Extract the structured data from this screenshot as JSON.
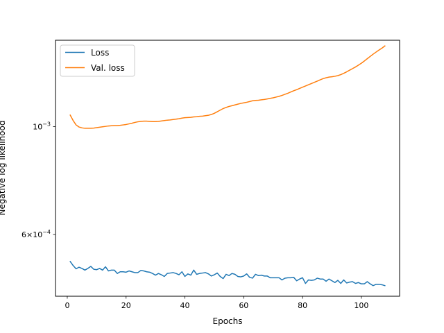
{
  "chart_data": {
    "type": "line",
    "title": "",
    "xlabel": "Epochs",
    "ylabel": "Negative log likelihood",
    "yscale": "log",
    "xlim": [
      -4,
      113
    ],
    "ylim": [
      0.000448,
      0.001505
    ],
    "xticks": [
      0,
      20,
      40,
      60,
      80,
      100
    ],
    "xtick_labels": [
      "0",
      "20",
      "40",
      "60",
      "80",
      "100"
    ],
    "yticks": [
      0.001,
      0.0006
    ],
    "ytick_labels": [
      {
        "mantissa": "",
        "base": "10",
        "exp": "−3"
      },
      {
        "mantissa": "6",
        "base": "10",
        "exp": "−4"
      }
    ],
    "legend": {
      "position": "upper-left"
    },
    "grid": false,
    "series": [
      {
        "name": "Loss",
        "color": "#1f77b4",
        "x": [
          1,
          2,
          3,
          4,
          5,
          6,
          7,
          8,
          9,
          10,
          11,
          12,
          13,
          14,
          15,
          16,
          17,
          18,
          19,
          20,
          21,
          22,
          23,
          24,
          25,
          26,
          27,
          28,
          29,
          30,
          31,
          32,
          33,
          34,
          35,
          36,
          37,
          38,
          39,
          40,
          41,
          42,
          43,
          44,
          45,
          46,
          47,
          48,
          49,
          50,
          51,
          52,
          53,
          54,
          55,
          56,
          57,
          58,
          59,
          60,
          61,
          62,
          63,
          64,
          65,
          66,
          67,
          68,
          69,
          70,
          71,
          72,
          73,
          74,
          75,
          76,
          77,
          78,
          79,
          80,
          81,
          82,
          83,
          84,
          85,
          86,
          87,
          88,
          89,
          90,
          91,
          92,
          93,
          94,
          95,
          96,
          97,
          98,
          99,
          100,
          101,
          102,
          103,
          104,
          105,
          106,
          107,
          108
        ],
        "y": [
          0.000528,
          0.000518,
          0.00051,
          0.000514,
          0.000511,
          0.000507,
          0.000511,
          0.000516,
          0.000509,
          0.000508,
          0.000511,
          0.000507,
          0.000515,
          0.000505,
          0.000507,
          0.000507,
          0.000499,
          0.000503,
          0.000503,
          0.000502,
          0.000505,
          0.000503,
          0.000501,
          0.000501,
          0.000506,
          0.000505,
          0.000503,
          0.000502,
          0.000499,
          0.000495,
          0.000499,
          0.000496,
          0.000492,
          0.000499,
          0.0005,
          0.000501,
          0.000499,
          0.000496,
          0.000503,
          0.000492,
          0.000498,
          0.000495,
          0.000507,
          0.000497,
          0.000499,
          0.0005,
          0.000501,
          0.000498,
          0.000493,
          0.000496,
          0.0005,
          0.000492,
          0.000487,
          0.000497,
          0.000494,
          0.000499,
          0.000497,
          0.000492,
          0.000491,
          0.000493,
          0.000498,
          0.00049,
          0.000488,
          0.000497,
          0.000494,
          0.000495,
          0.000493,
          0.000493,
          0.000489,
          0.000489,
          0.000489,
          0.000489,
          0.000484,
          0.000488,
          0.000489,
          0.000489,
          0.00049,
          0.000482,
          0.000486,
          0.000489,
          0.000476,
          0.000484,
          0.000483,
          0.000484,
          0.000488,
          0.000486,
          0.000486,
          0.000481,
          0.000486,
          0.000482,
          0.000478,
          0.000483,
          0.000476,
          0.000484,
          0.000477,
          0.000479,
          0.00048,
          0.000476,
          0.000478,
          0.000475,
          0.000475,
          0.00048,
          0.000475,
          0.000471,
          0.000474,
          0.000474,
          0.000473,
          0.000471
        ]
      },
      {
        "name": "Val. loss",
        "color": "#ff7f0e",
        "x": [
          1,
          2,
          3,
          4,
          5,
          6,
          7,
          8,
          9,
          10,
          11,
          12,
          13,
          14,
          15,
          16,
          17,
          18,
          19,
          20,
          21,
          22,
          23,
          24,
          25,
          26,
          27,
          28,
          29,
          30,
          31,
          32,
          33,
          34,
          35,
          36,
          37,
          38,
          39,
          40,
          41,
          42,
          43,
          44,
          45,
          46,
          47,
          48,
          49,
          50,
          51,
          52,
          53,
          54,
          55,
          56,
          57,
          58,
          59,
          60,
          61,
          62,
          63,
          64,
          65,
          66,
          67,
          68,
          69,
          70,
          71,
          72,
          73,
          74,
          75,
          76,
          77,
          78,
          79,
          80,
          81,
          82,
          83,
          84,
          85,
          86,
          87,
          88,
          89,
          90,
          91,
          92,
          93,
          94,
          95,
          96,
          97,
          98,
          99,
          100,
          101,
          102,
          103,
          104,
          105,
          106,
          107,
          108
        ],
        "y": [
          0.001056,
          0.001029,
          0.001008,
          0.000998,
          0.000994,
          0.000992,
          0.000992,
          0.000992,
          0.000993,
          0.000995,
          0.000997,
          0.000999,
          0.001001,
          0.001003,
          0.001004,
          0.001005,
          0.001005,
          0.001006,
          0.001008,
          0.00101,
          0.001013,
          0.001016,
          0.00102,
          0.001023,
          0.001025,
          0.001026,
          0.001026,
          0.001025,
          0.001024,
          0.001024,
          0.001025,
          0.001027,
          0.001029,
          0.001031,
          0.001032,
          0.001034,
          0.001036,
          0.001038,
          0.001041,
          0.001043,
          0.001044,
          0.001045,
          0.001047,
          0.001048,
          0.00105,
          0.001051,
          0.001053,
          0.001055,
          0.001059,
          0.001065,
          0.001073,
          0.001081,
          0.001089,
          0.001095,
          0.0011,
          0.001104,
          0.001108,
          0.001112,
          0.001116,
          0.001119,
          0.001122,
          0.001126,
          0.00113,
          0.001132,
          0.001133,
          0.001135,
          0.001137,
          0.00114,
          0.001143,
          0.001146,
          0.00115,
          0.001154,
          0.001159,
          0.001165,
          0.001171,
          0.001178,
          0.001185,
          0.001191,
          0.001198,
          0.001205,
          0.001212,
          0.001219,
          0.001226,
          0.001233,
          0.00124,
          0.001248,
          0.001255,
          0.00126,
          0.001264,
          0.001266,
          0.001269,
          0.001273,
          0.001279,
          0.001287,
          0.001296,
          0.001306,
          0.001316,
          0.001326,
          0.001338,
          0.00135,
          0.001364,
          0.001379,
          0.001394,
          0.001409,
          0.001423,
          0.001437,
          0.00145,
          0.001465
        ]
      }
    ]
  }
}
